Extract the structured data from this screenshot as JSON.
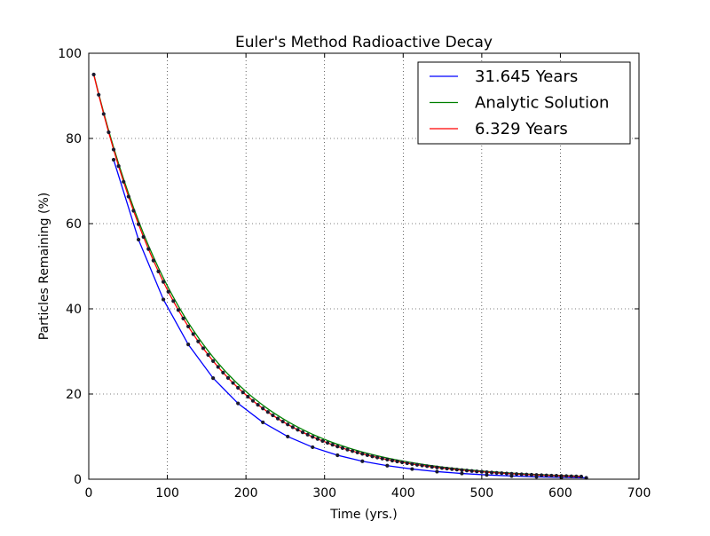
{
  "chart_data": {
    "type": "line",
    "title": "Euler's Method Radioactive Decay",
    "xlabel": "Time (yrs.)",
    "ylabel": "Particles Remaining (%)",
    "xlim": [
      0,
      700
    ],
    "ylim": [
      0,
      100
    ],
    "xticks": [
      0,
      100,
      200,
      300,
      400,
      500,
      600,
      700
    ],
    "yticks": [
      0,
      20,
      40,
      60,
      80,
      100
    ],
    "grid": true,
    "legend_position": "top-right",
    "series": [
      {
        "name": "31.645 Years",
        "color": "#0000ff",
        "markers": true,
        "x": [
          31.645,
          63.29,
          94.935,
          126.58,
          158.225,
          189.87,
          221.515,
          253.16,
          284.805,
          316.45,
          348.095,
          379.74,
          411.385,
          443.03,
          474.675,
          506.32,
          537.965,
          569.61,
          601.255,
          632.9
        ],
        "y": [
          75.0,
          56.25,
          42.19,
          31.64,
          23.73,
          17.8,
          13.35,
          10.01,
          7.51,
          5.63,
          4.22,
          3.17,
          2.38,
          1.78,
          1.34,
          1.0,
          0.75,
          0.56,
          0.42,
          0.32
        ]
      },
      {
        "name": "Analytic Solution",
        "color": "#008000",
        "markers": false,
        "x": [
          6.329,
          12.658,
          18.987,
          25.316,
          31.645,
          37.974,
          44.303,
          50.632,
          56.961,
          63.29,
          69.619,
          75.948,
          82.277,
          88.606,
          94.935,
          101.264,
          107.593,
          113.922,
          120.251,
          126.58,
          132.909,
          139.238,
          145.567,
          151.896,
          158.225,
          164.554,
          170.883,
          177.212,
          183.541,
          189.87,
          196.199,
          202.528,
          208.857,
          215.186,
          221.515,
          227.844,
          234.173,
          240.502,
          246.831,
          253.16,
          259.489,
          265.818,
          272.147,
          278.476,
          284.805,
          291.134,
          297.463,
          303.792,
          310.121,
          316.45,
          322.779,
          329.108,
          335.437,
          341.766,
          348.095,
          354.424,
          360.753,
          367.082,
          373.411,
          379.74,
          386.069,
          392.398,
          398.727,
          405.056,
          411.385,
          417.714,
          424.043,
          430.372,
          436.701,
          443.03,
          449.359,
          455.688,
          462.017,
          468.346,
          474.675,
          481.004,
          487.333,
          493.662,
          499.991,
          506.32,
          512.649,
          518.978,
          525.307,
          531.636,
          537.965,
          544.294,
          550.623,
          556.952,
          563.281,
          569.61,
          575.939,
          582.268,
          588.597,
          594.926,
          601.255,
          607.584,
          613.913,
          620.242,
          626.571
        ],
        "y": [
          95.12,
          90.48,
          86.07,
          81.87,
          77.88,
          74.08,
          70.47,
          67.03,
          63.76,
          60.65,
          57.69,
          54.88,
          52.2,
          49.66,
          47.24,
          44.93,
          42.74,
          40.66,
          38.67,
          36.79,
          34.99,
          33.29,
          31.66,
          30.12,
          28.65,
          27.25,
          25.92,
          24.66,
          23.46,
          22.31,
          21.22,
          20.19,
          19.2,
          18.27,
          17.38,
          16.53,
          15.72,
          14.96,
          14.23,
          13.53,
          12.87,
          12.25,
          11.65,
          11.08,
          10.54,
          10.03,
          9.54,
          9.07,
          8.63,
          8.21,
          7.81,
          7.43,
          7.07,
          6.72,
          6.39,
          6.08,
          5.79,
          5.5,
          5.24,
          4.98,
          4.74,
          4.51,
          4.29,
          4.08,
          3.88,
          3.69,
          3.51,
          3.34,
          3.18,
          3.02,
          2.87,
          2.73,
          2.6,
          2.47,
          2.35,
          2.24,
          2.13,
          2.03,
          1.93,
          1.83,
          1.74,
          1.66,
          1.58,
          1.5,
          1.43,
          1.36,
          1.29,
          1.23,
          1.17,
          1.11,
          1.06,
          1.01,
          0.96,
          0.91,
          0.87,
          0.83,
          0.79,
          0.75,
          0.71
        ]
      },
      {
        "name": "6.329 Years",
        "color": "#ff0000",
        "markers": true,
        "x": [
          6.329,
          12.658,
          18.987,
          25.316,
          31.645,
          37.974,
          44.303,
          50.632,
          56.961,
          63.29,
          69.619,
          75.948,
          82.277,
          88.606,
          94.935,
          101.264,
          107.593,
          113.922,
          120.251,
          126.58,
          132.909,
          139.238,
          145.567,
          151.896,
          158.225,
          164.554,
          170.883,
          177.212,
          183.541,
          189.87,
          196.199,
          202.528,
          208.857,
          215.186,
          221.515,
          227.844,
          234.173,
          240.502,
          246.831,
          253.16,
          259.489,
          265.818,
          272.147,
          278.476,
          284.805,
          291.134,
          297.463,
          303.792,
          310.121,
          316.45,
          322.779,
          329.108,
          335.437,
          341.766,
          348.095,
          354.424,
          360.753,
          367.082,
          373.411,
          379.74,
          386.069,
          392.398,
          398.727,
          405.056,
          411.385,
          417.714,
          424.043,
          430.372,
          436.701,
          443.03,
          449.359,
          455.688,
          462.017,
          468.346,
          474.675,
          481.004,
          487.333,
          493.662,
          499.991,
          506.32,
          512.649,
          518.978,
          525.307,
          531.636,
          537.965,
          544.294,
          550.623,
          556.952,
          563.281,
          569.61,
          575.939,
          582.268,
          588.597,
          594.926,
          601.255,
          607.584,
          613.913,
          620.242,
          626.571
        ],
        "y": [
          95.0,
          90.25,
          85.74,
          81.45,
          77.38,
          73.51,
          69.83,
          66.34,
          63.02,
          59.87,
          56.88,
          54.04,
          51.33,
          48.77,
          46.33,
          44.01,
          41.81,
          39.72,
          37.74,
          35.85,
          34.06,
          32.35,
          30.74,
          29.2,
          27.74,
          26.35,
          25.03,
          23.78,
          22.59,
          21.46,
          20.39,
          19.37,
          18.4,
          17.48,
          16.61,
          15.78,
          14.99,
          14.24,
          13.53,
          12.85,
          12.21,
          11.6,
          11.02,
          10.47,
          9.94,
          9.45,
          8.97,
          8.53,
          8.1,
          7.69,
          7.31,
          6.94,
          6.6,
          6.27,
          5.95,
          5.66,
          5.37,
          5.1,
          4.85,
          4.61,
          4.38,
          4.16,
          3.95,
          3.75,
          3.57,
          3.39,
          3.22,
          3.06,
          2.9,
          2.76,
          2.62,
          2.49,
          2.37,
          2.25,
          2.13,
          2.03,
          1.93,
          1.83,
          1.74,
          1.65,
          1.57,
          1.49,
          1.42,
          1.34,
          1.28,
          1.21,
          1.15,
          1.1,
          1.04,
          0.99,
          0.94,
          0.89,
          0.85,
          0.81,
          0.77,
          0.73,
          0.69,
          0.66,
          0.62
        ]
      }
    ]
  }
}
